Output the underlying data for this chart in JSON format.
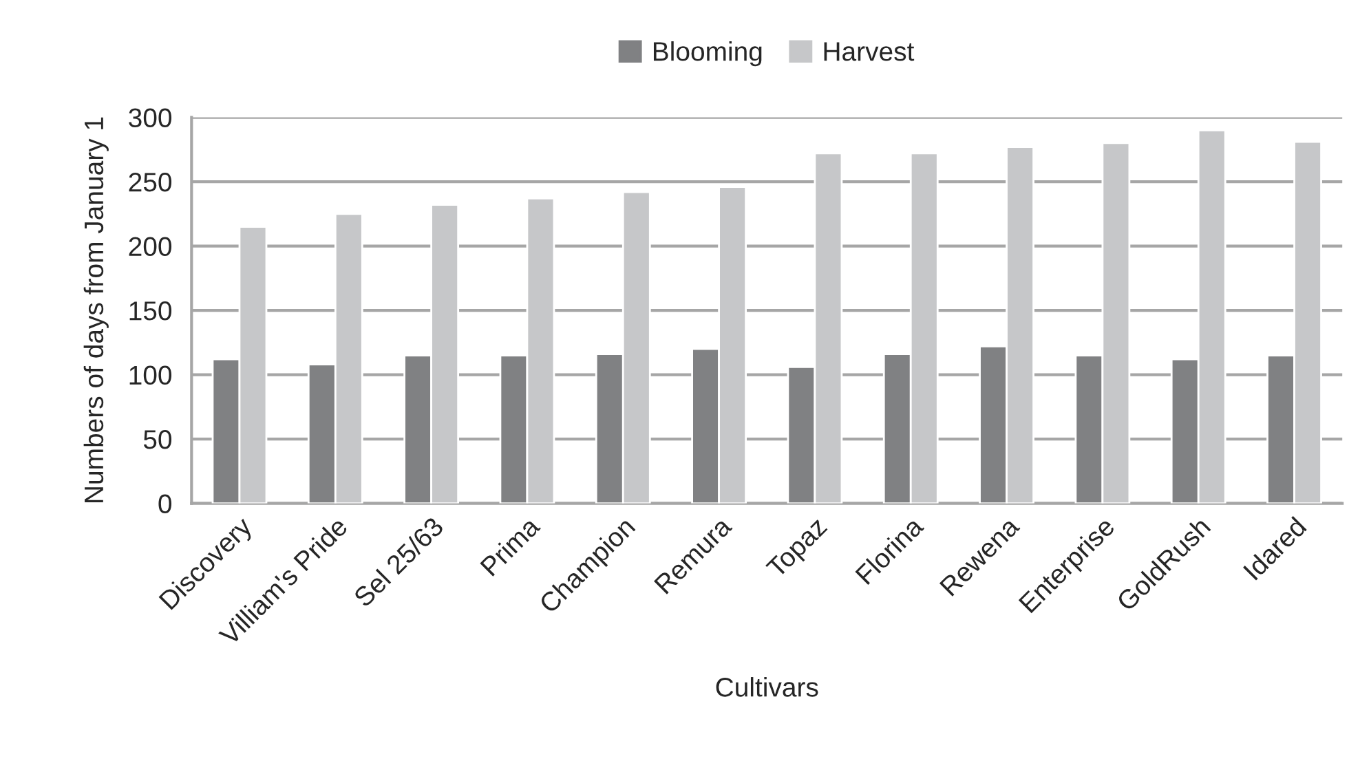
{
  "chart_data": {
    "type": "bar",
    "xlabel": "Cultivars",
    "ylabel": "Numbers of days from January 1",
    "categories": [
      "Discovery",
      "Villiam's Pride",
      "Sel 25/63",
      "Prima",
      "Champion",
      "Remura",
      "Topaz",
      "Florina",
      "Rewena",
      "Enterprise",
      "GoldRush",
      "Idared"
    ],
    "series": [
      {
        "name": "Blooming",
        "color": "#808183",
        "values": [
          112,
          108,
          115,
          115,
          116,
          120,
          106,
          116,
          122,
          115,
          112,
          115
        ]
      },
      {
        "name": "Harvest",
        "color": "#c6c7c9",
        "values": [
          215,
          225,
          232,
          237,
          242,
          246,
          272,
          272,
          277,
          280,
          290,
          281
        ]
      }
    ],
    "ylim": [
      0,
      300
    ],
    "yticks": [
      0,
      50,
      100,
      150,
      200,
      250,
      300
    ],
    "grid": "y",
    "legend": "top"
  }
}
